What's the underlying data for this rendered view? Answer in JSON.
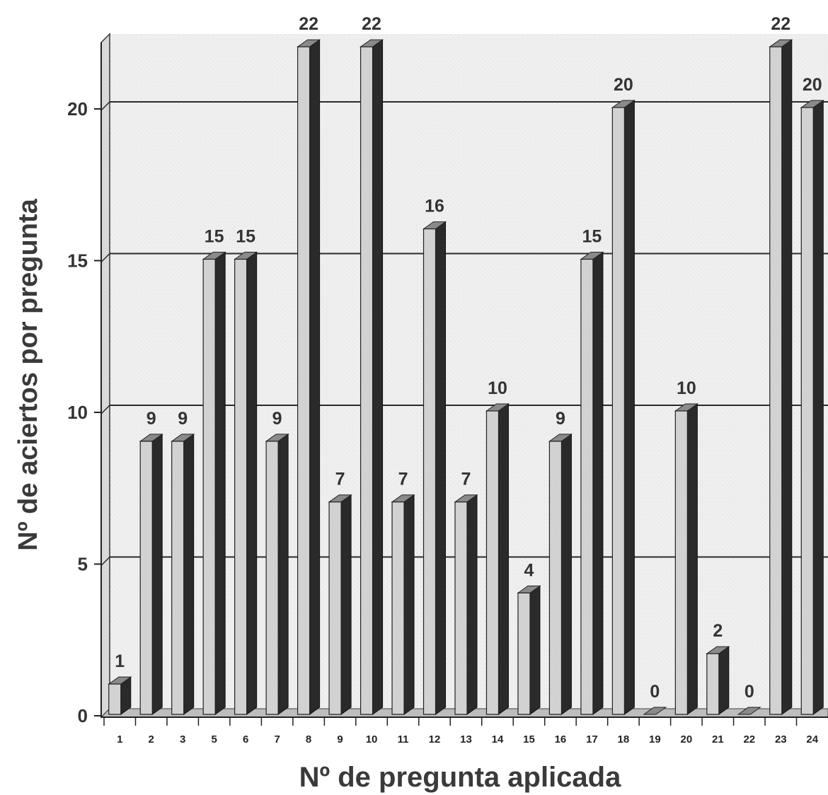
{
  "chart_data": {
    "type": "bar",
    "xlabel": "Nº de pregunta aplicada",
    "ylabel": "Nº de aciertos por pregunta",
    "categories": [
      "1",
      "2",
      "3",
      "5",
      "6",
      "7",
      "8",
      "9",
      "10",
      "11",
      "12",
      "13",
      "14",
      "15",
      "16",
      "17",
      "18",
      "19",
      "20",
      "21",
      "22",
      "23",
      "24"
    ],
    "series": [
      {
        "values": [
          1,
          9,
          9,
          15,
          15,
          9,
          22,
          7,
          22,
          7,
          16,
          7,
          10,
          4,
          9,
          15,
          20,
          0,
          10,
          2,
          0,
          22,
          20
        ]
      }
    ],
    "data_labels": [
      "1",
      "9",
      "9",
      "15",
      "15",
      "9",
      "22",
      "7",
      "22",
      "7",
      "16",
      "7",
      "10",
      "4",
      "9",
      "15",
      "20",
      "0",
      "10",
      "2",
      "0",
      "22",
      "20"
    ],
    "ylim": [
      0,
      20
    ],
    "yticks": [
      "0",
      "5",
      "10",
      "15",
      "20"
    ],
    "grid": true,
    "style": "3d",
    "colors": {
      "bar_front": "#cfcfcf",
      "bar_side": "#2a2a2a",
      "bar_top": "#8a8a8a",
      "plot_bg": "#ececec",
      "grid": "#2b2b2b"
    }
  }
}
